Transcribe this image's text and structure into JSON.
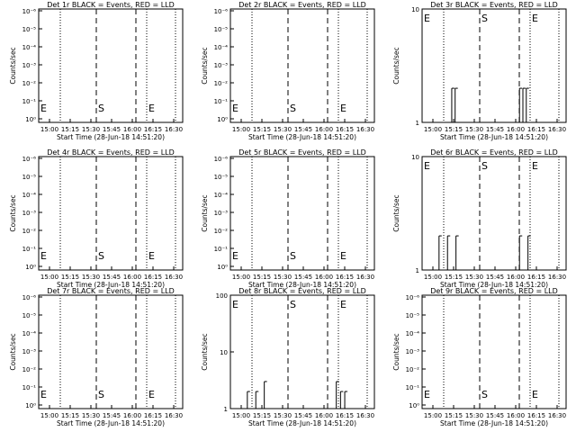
{
  "x_tick_labels": [
    "15:00",
    "15:15",
    "15:30",
    "15:45",
    "16:00",
    "16:15",
    "16:30"
  ],
  "xlabel": "Start Time (28-Jun-18 14:51:20)",
  "ylabel": "Counts/sec",
  "marker_labels": {
    "start": "E",
    "s": "S",
    "end": "E"
  },
  "chart_data": [
    {
      "type": "line",
      "title": "Det 1r BLACK = Events, RED = LLD",
      "ylog": false,
      "y_tick_labels": [
        "10⁰",
        "10⁻¹",
        "10⁻²",
        "10⁻³",
        "10⁻⁴",
        "10⁻⁵",
        "10⁻⁶"
      ],
      "series": []
    },
    {
      "type": "line",
      "title": "Det 2r BLACK = Events, RED = LLD",
      "ylog": false,
      "y_tick_labels": [
        "10⁰",
        "10⁻¹",
        "10⁻²",
        "10⁻³",
        "10⁻⁴",
        "10⁻⁵",
        "10⁻⁶"
      ],
      "series": []
    },
    {
      "type": "line",
      "title": "Det 3r BLACK = Events, RED = LLD",
      "ylog": true,
      "ylim": [
        1,
        10
      ],
      "y_tick_labels": [
        "1",
        "10"
      ],
      "series": [
        {
          "color": "#000000",
          "x": [
            15.2,
            15.22,
            15.24,
            16.0,
            16.02,
            16.04,
            16.06,
            16.08,
            16.1
          ],
          "y": [
            2,
            1,
            2,
            2,
            1,
            2,
            1,
            2,
            1
          ]
        }
      ]
    },
    {
      "type": "line",
      "title": "Det 4r BLACK = Events, RED = LLD",
      "ylog": false,
      "y_tick_labels": [
        "10⁰",
        "10⁻¹",
        "10⁻²",
        "10⁻³",
        "10⁻⁴",
        "10⁻⁵",
        "10⁻⁶"
      ],
      "series": []
    },
    {
      "type": "line",
      "title": "Det 5r BLACK = Events, RED = LLD",
      "ylog": false,
      "y_tick_labels": [
        "10⁰",
        "10⁻¹",
        "10⁻²",
        "10⁻³",
        "10⁻⁴",
        "10⁻⁵",
        "10⁻⁶"
      ],
      "series": []
    },
    {
      "type": "line",
      "title": "Det 6r BLACK = Events, RED = LLD",
      "ylog": true,
      "ylim": [
        1,
        10
      ],
      "y_tick_labels": [
        "1",
        "10"
      ],
      "series": [
        {
          "color": "#000000",
          "x": [
            15.05,
            15.1,
            15.15,
            15.2,
            15.25,
            15.3,
            16.0,
            16.05,
            16.1
          ],
          "y": [
            2,
            1,
            2,
            1,
            2,
            1,
            2,
            1,
            2
          ]
        }
      ]
    },
    {
      "type": "line",
      "title": "Det 7r BLACK = Events, RED = LLD",
      "ylog": false,
      "y_tick_labels": [
        "10⁰",
        "10⁻¹",
        "10⁻²",
        "10⁻³",
        "10⁻⁴",
        "10⁻⁵",
        "10⁻⁶"
      ],
      "series": []
    },
    {
      "type": "line",
      "title": "Det 8r BLACK = Events, RED = LLD",
      "ylog": true,
      "ylim": [
        1,
        100
      ],
      "y_tick_labels": [
        "1",
        "10",
        "100"
      ],
      "series": [
        {
          "color": "#000000",
          "x": [
            15.05,
            15.1,
            15.15,
            15.2,
            15.25,
            15.3,
            16.1,
            16.15,
            16.2
          ],
          "y": [
            2,
            1,
            2,
            1,
            3,
            1,
            3,
            2,
            2
          ]
        }
      ]
    },
    {
      "type": "line",
      "title": "Det 9r BLACK = Events, RED = LLD",
      "ylog": false,
      "y_tick_labels": [
        "10⁰",
        "10⁻¹",
        "10⁻²",
        "10⁻³",
        "10⁻⁴",
        "10⁻⁵",
        "10⁻⁶"
      ],
      "series": []
    }
  ]
}
